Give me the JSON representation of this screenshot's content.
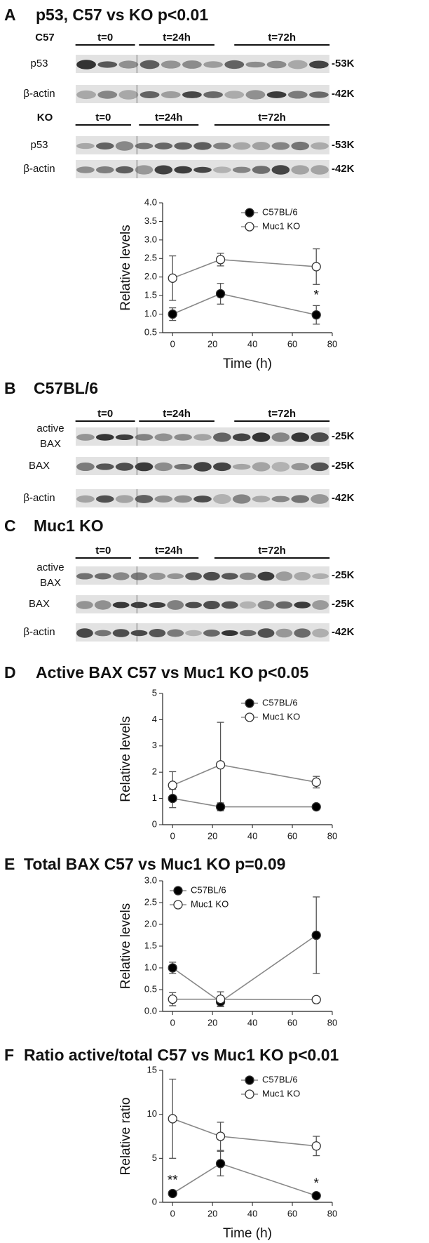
{
  "panels": [
    {
      "letter": "A",
      "title": "p53, C57 vs KO p<0.01",
      "blots": [
        {
          "group": "C57",
          "timepoints": [
            "t=0",
            "t=24h",
            "t=72h"
          ],
          "rows": [
            {
              "label": [
                "p53"
              ],
              "size": "-53K"
            },
            {
              "label": [
                "β-actin"
              ],
              "size": "-42K"
            }
          ]
        },
        {
          "group": "KO",
          "timepoints": [
            "t=0",
            "t=24h",
            "t=72h"
          ],
          "rows": [
            {
              "label": [
                "p53"
              ],
              "size": "-53K"
            },
            {
              "label": [
                "β-actin"
              ],
              "size": "-42K"
            }
          ]
        }
      ]
    },
    {
      "letter": "B",
      "title": "C57BL/6",
      "blots": [
        {
          "timepoints": [
            "t=0",
            "t=24h",
            "t=72h"
          ],
          "rows": [
            {
              "label": [
                "active",
                "BAX"
              ],
              "size": "-25K"
            },
            {
              "label": [
                "BAX"
              ],
              "size": "-25K"
            },
            {
              "label": [
                "β-actin"
              ],
              "size": "-42K"
            }
          ]
        }
      ]
    },
    {
      "letter": "C",
      "title": "Muc1 KO",
      "blots": [
        {
          "timepoints": [
            "t=0",
            "t=24h",
            "t=72h"
          ],
          "rows": [
            {
              "label": [
                "active",
                "BAX"
              ],
              "size": "-25K"
            },
            {
              "label": [
                "BAX"
              ],
              "size": "-25K"
            },
            {
              "label": [
                "β-actin"
              ],
              "size": "-42K"
            }
          ]
        }
      ]
    },
    {
      "letter": "D",
      "title": "Active BAX C57 vs Muc1 KO p<0.05",
      "blots": []
    },
    {
      "letter": "E",
      "title": "Total BAX C57 vs Muc1 KO p=0.09",
      "blots": []
    },
    {
      "letter": "F",
      "title": "Ratio active/total C57 vs Muc1 KO p<0.01",
      "blots": []
    }
  ],
  "chart_data": [
    {
      "type": "line",
      "ylabel": "Relative levels",
      "xlabel": "Time (h)",
      "x": [
        0,
        24,
        72
      ],
      "xlim": [
        -5,
        80
      ],
      "xticks": [
        0,
        20,
        40,
        60,
        80
      ],
      "ylim": [
        0.5,
        4.0
      ],
      "yticks": [
        0.5,
        {
          "value": 1,
          "label": "1.0"
        },
        1.5,
        {
          "value": 2,
          "label": "2.0"
        },
        2.5,
        {
          "value": 3,
          "label": "3.0"
        },
        3.5,
        {
          "value": 4,
          "label": "4.0"
        }
      ],
      "legend": "upper right",
      "series": [
        {
          "name": "C57BL/6",
          "color": "#000000",
          "values": [
            1.0,
            1.55,
            0.98
          ],
          "errors": [
            0.17,
            0.28,
            0.25
          ]
        },
        {
          "name": "Muc1 KO",
          "color": "#ffffff",
          "values": [
            1.97,
            2.47,
            2.28
          ],
          "errors": [
            0.6,
            0.17,
            0.48
          ]
        }
      ],
      "annotations": [
        {
          "text": "*",
          "x": 72
        }
      ]
    },
    {
      "type": "line",
      "ylabel": "Relative levels",
      "x": [
        0,
        24,
        72
      ],
      "xlim": [
        -5,
        80
      ],
      "xticks": [
        0,
        20,
        40,
        60,
        80
      ],
      "ylim": [
        0,
        5
      ],
      "yticks": [
        0,
        1,
        2,
        3,
        4,
        5
      ],
      "legend": "upper right",
      "series": [
        {
          "name": "C57BL/6",
          "color": "#000000",
          "values": [
            1.0,
            0.68,
            0.68
          ],
          "errors": [
            0.35,
            0.15,
            0.1
          ]
        },
        {
          "name": "Muc1 KO",
          "color": "#ffffff",
          "values": [
            1.5,
            2.28,
            1.62
          ],
          "errors": [
            0.52,
            1.62,
            0.22
          ]
        }
      ],
      "annotations": []
    },
    {
      "type": "line",
      "ylabel": "Relative levels",
      "x": [
        0,
        24,
        72
      ],
      "xlim": [
        -5,
        80
      ],
      "xticks": [
        0,
        20,
        40,
        60,
        80
      ],
      "ylim": [
        0,
        3
      ],
      "yticks": [
        {
          "value": 0,
          "label": "0.0"
        },
        0.5,
        {
          "value": 1,
          "label": "1.0"
        },
        1.5,
        {
          "value": 2,
          "label": "2.0"
        },
        2.5,
        {
          "value": 3,
          "label": "3.0"
        }
      ],
      "legend": "upper left",
      "series": [
        {
          "name": "C57BL/6",
          "color": "#000000",
          "values": [
            1.0,
            0.22,
            1.75
          ],
          "errors": [
            0.13,
            0.1,
            0.88
          ]
        },
        {
          "name": "Muc1 KO",
          "color": "#ffffff",
          "values": [
            0.28,
            0.28,
            0.27
          ],
          "errors": [
            0.15,
            0.17,
            0.05
          ]
        }
      ],
      "annotations": []
    },
    {
      "type": "line",
      "ylabel": "Relative ratio",
      "xlabel": "Time (h)",
      "x": [
        0,
        24,
        72
      ],
      "xlim": [
        -5,
        80
      ],
      "xticks": [
        0,
        20,
        40,
        60,
        80
      ],
      "ylim": [
        0,
        15
      ],
      "yticks": [
        0,
        5,
        10,
        15
      ],
      "legend": "upper right",
      "series": [
        {
          "name": "C57BL/6",
          "color": "#000000",
          "values": [
            1.0,
            4.4,
            0.75
          ],
          "errors": [
            0.3,
            1.4,
            0.2
          ]
        },
        {
          "name": "Muc1 KO",
          "color": "#ffffff",
          "values": [
            9.5,
            7.5,
            6.4
          ],
          "errors": [
            4.5,
            1.6,
            1.1
          ]
        }
      ],
      "annotations": [
        {
          "text": "**",
          "x": 0
        },
        {
          "text": "*",
          "x": 72
        }
      ]
    }
  ]
}
